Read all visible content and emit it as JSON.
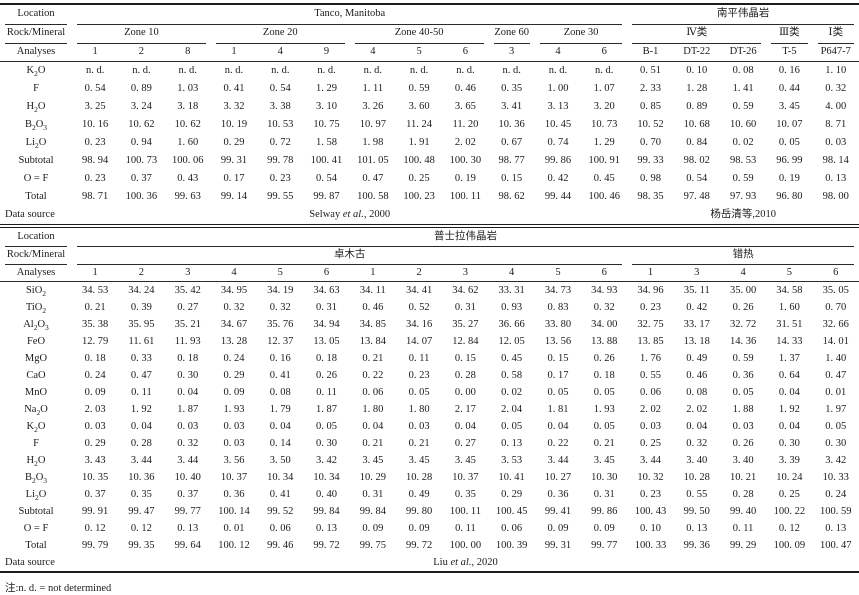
{
  "footnote": "注:n. d. = not determined",
  "tables": [
    {
      "location_label": "Location",
      "rock_label": "Rock/Mineral",
      "analyses_label": "Analyses",
      "data_source_label": "Data source",
      "locations": [
        {
          "label": "Tanco, Manitoba",
          "span": 12
        },
        {
          "label": "南平伟晶岩",
          "span": 5
        }
      ],
      "groups": [
        {
          "label": "Zone 10",
          "span": 3
        },
        {
          "label": "Zone 20",
          "span": 3
        },
        {
          "label": "Zone 40-50",
          "span": 3
        },
        {
          "label": "Zone 60",
          "span": 1
        },
        {
          "label": "Zone 30",
          "span": 2
        },
        {
          "label": "Ⅳ类",
          "span": 3
        },
        {
          "label": "Ⅲ类",
          "span": 1
        },
        {
          "label": "Ⅰ类",
          "span": 1
        }
      ],
      "analyses": [
        "1",
        "2",
        "8",
        "1",
        "4",
        "9",
        "4",
        "5",
        "6",
        "3",
        "4",
        "6",
        "B-1",
        "DT-22",
        "DT-26",
        "T-5",
        "P647-7"
      ],
      "rows": [
        {
          "label": "K2O",
          "values": [
            "n. d.",
            "n. d.",
            "n. d.",
            "n. d.",
            "n. d.",
            "n. d.",
            "n. d.",
            "n. d.",
            "n. d.",
            "n. d.",
            "n. d.",
            "n. d.",
            "0. 51",
            "0. 10",
            "0. 08",
            "0. 16",
            "1. 10"
          ]
        },
        {
          "label": "F",
          "values": [
            "0. 54",
            "0. 89",
            "1. 03",
            "0. 41",
            "0. 54",
            "1. 29",
            "1. 11",
            "0. 59",
            "0. 46",
            "0. 35",
            "1. 00",
            "1. 07",
            "2. 33",
            "1. 28",
            "1. 41",
            "0. 44",
            "0. 32"
          ]
        },
        {
          "label": "H2O",
          "values": [
            "3. 25",
            "3. 24",
            "3. 18",
            "3. 32",
            "3. 38",
            "3. 10",
            "3. 26",
            "3. 60",
            "3. 65",
            "3. 41",
            "3. 13",
            "3. 20",
            "0. 85",
            "0. 89",
            "0. 59",
            "3. 45",
            "4. 00"
          ]
        },
        {
          "label": "B2O3",
          "values": [
            "10. 16",
            "10. 62",
            "10. 62",
            "10. 19",
            "10. 53",
            "10. 75",
            "10. 97",
            "11. 24",
            "11. 20",
            "10. 36",
            "10. 45",
            "10. 73",
            "10. 52",
            "10. 68",
            "10. 60",
            "10. 07",
            "8. 71"
          ]
        },
        {
          "label": "Li2O",
          "values": [
            "0. 23",
            "0. 94",
            "1. 60",
            "0. 29",
            "0. 72",
            "1. 58",
            "1. 98",
            "1. 91",
            "2. 02",
            "0. 67",
            "0. 74",
            "1. 29",
            "0. 70",
            "0. 84",
            "0. 02",
            "0. 05",
            "0. 03"
          ]
        },
        {
          "label": "Subtotal",
          "values": [
            "98. 94",
            "100. 73",
            "100. 06",
            "99. 31",
            "99. 78",
            "100. 41",
            "101. 05",
            "100. 48",
            "100. 30",
            "98. 77",
            "99. 86",
            "100. 91",
            "99. 33",
            "98. 02",
            "98. 53",
            "96. 99",
            "98. 14"
          ]
        },
        {
          "label": "O = F",
          "values": [
            "0. 23",
            "0. 37",
            "0. 43",
            "0. 17",
            "0. 23",
            "0. 54",
            "0. 47",
            "0. 25",
            "0. 19",
            "0. 15",
            "0. 42",
            "0. 45",
            "0. 98",
            "0. 54",
            "0. 59",
            "0. 19",
            "0. 13"
          ]
        },
        {
          "label": "Total",
          "values": [
            "98. 71",
            "100. 36",
            "99. 63",
            "99. 14",
            "99. 55",
            "99. 87",
            "100. 58",
            "100. 23",
            "100. 11",
            "98. 62",
            "99. 44",
            "100. 46",
            "98. 35",
            "97. 48",
            "97. 93",
            "96. 80",
            "98. 00"
          ]
        }
      ],
      "data_sources": [
        {
          "text": "Selway et al., 2000",
          "span": 12
        },
        {
          "text": "杨岳清等,2010",
          "span": 5
        }
      ]
    },
    {
      "location_label": "Location",
      "rock_label": "Rock/Mineral",
      "analyses_label": "Analyses",
      "data_source_label": "Data source",
      "locations": [
        {
          "label": "普士拉伟晶岩",
          "span": 17
        }
      ],
      "groups": [
        {
          "label": "卓木古",
          "span": 12
        },
        {
          "label": "错热",
          "span": 5
        }
      ],
      "analyses": [
        "1",
        "2",
        "3",
        "4",
        "5",
        "6",
        "1",
        "2",
        "3",
        "4",
        "5",
        "6",
        "1",
        "3",
        "4",
        "5",
        "6"
      ],
      "rows": [
        {
          "label": "SiO2",
          "values": [
            "34. 53",
            "34. 24",
            "35. 42",
            "34. 95",
            "34. 19",
            "34. 63",
            "34. 11",
            "34. 41",
            "34. 62",
            "33. 31",
            "34. 73",
            "34. 93",
            "34. 96",
            "35. 11",
            "35. 00",
            "34. 58",
            "35. 05"
          ]
        },
        {
          "label": "TiO2",
          "values": [
            "0. 21",
            "0. 39",
            "0. 27",
            "0. 32",
            "0. 32",
            "0. 31",
            "0. 46",
            "0. 52",
            "0. 31",
            "0. 93",
            "0. 83",
            "0. 32",
            "0. 23",
            "0. 42",
            "0. 26",
            "1. 60",
            "0. 70"
          ]
        },
        {
          "label": "Al2O3",
          "values": [
            "35. 38",
            "35. 95",
            "35. 21",
            "34. 67",
            "35. 76",
            "34. 94",
            "34. 85",
            "34. 16",
            "35. 27",
            "36. 66",
            "33. 80",
            "34. 00",
            "32. 75",
            "33. 17",
            "32. 72",
            "31. 51",
            "32. 66"
          ]
        },
        {
          "label": "FeO",
          "values": [
            "12. 79",
            "11. 61",
            "11. 93",
            "13. 28",
            "12. 37",
            "13. 05",
            "13. 84",
            "14. 07",
            "12. 84",
            "12. 05",
            "13. 56",
            "13. 88",
            "13. 85",
            "13. 18",
            "14. 36",
            "14. 33",
            "14. 01"
          ]
        },
        {
          "label": "MgO",
          "values": [
            "0. 18",
            "0. 33",
            "0. 18",
            "0. 24",
            "0. 16",
            "0. 18",
            "0. 21",
            "0. 11",
            "0. 15",
            "0. 45",
            "0. 15",
            "0. 26",
            "1. 76",
            "0. 49",
            "0. 59",
            "1. 37",
            "1. 40"
          ]
        },
        {
          "label": "CaO",
          "values": [
            "0. 24",
            "0. 47",
            "0. 30",
            "0. 29",
            "0. 41",
            "0. 26",
            "0. 22",
            "0. 23",
            "0. 28",
            "0. 58",
            "0. 17",
            "0. 18",
            "0. 55",
            "0. 46",
            "0. 36",
            "0. 64",
            "0. 47"
          ]
        },
        {
          "label": "MnO",
          "values": [
            "0. 09",
            "0. 11",
            "0. 04",
            "0. 09",
            "0. 08",
            "0. 11",
            "0. 06",
            "0. 05",
            "0. 00",
            "0. 02",
            "0. 05",
            "0. 05",
            "0. 06",
            "0. 08",
            "0. 05",
            "0. 04",
            "0. 01"
          ]
        },
        {
          "label": "Na2O",
          "values": [
            "2. 03",
            "1. 92",
            "1. 87",
            "1. 93",
            "1. 79",
            "1. 87",
            "1. 80",
            "1. 80",
            "2. 17",
            "2. 04",
            "1. 81",
            "1. 93",
            "2. 02",
            "2. 02",
            "1. 88",
            "1. 92",
            "1. 97"
          ]
        },
        {
          "label": "K2O",
          "values": [
            "0. 03",
            "0. 04",
            "0. 03",
            "0. 03",
            "0. 04",
            "0. 05",
            "0. 04",
            "0. 03",
            "0. 04",
            "0. 05",
            "0. 04",
            "0. 05",
            "0. 03",
            "0. 04",
            "0. 03",
            "0. 04",
            "0. 05"
          ]
        },
        {
          "label": "F",
          "values": [
            "0. 29",
            "0. 28",
            "0. 32",
            "0. 03",
            "0. 14",
            "0. 30",
            "0. 21",
            "0. 21",
            "0. 27",
            "0. 13",
            "0. 22",
            "0. 21",
            "0. 25",
            "0. 32",
            "0. 26",
            "0. 30",
            "0. 30"
          ]
        },
        {
          "label": "H2O",
          "values": [
            "3. 43",
            "3. 44",
            "3. 44",
            "3. 56",
            "3. 50",
            "3. 42",
            "3. 45",
            "3. 45",
            "3. 45",
            "3. 53",
            "3. 44",
            "3. 45",
            "3. 44",
            "3. 40",
            "3. 40",
            "3. 39",
            "3. 42"
          ]
        },
        {
          "label": "B2O3",
          "values": [
            "10. 35",
            "10. 36",
            "10. 40",
            "10. 37",
            "10. 34",
            "10. 34",
            "10. 29",
            "10. 28",
            "10. 37",
            "10. 41",
            "10. 27",
            "10. 30",
            "10. 32",
            "10. 28",
            "10. 21",
            "10. 24",
            "10. 33"
          ]
        },
        {
          "label": "Li2O",
          "values": [
            "0. 37",
            "0. 35",
            "0. 37",
            "0. 36",
            "0. 41",
            "0. 40",
            "0. 31",
            "0. 49",
            "0. 35",
            "0. 29",
            "0. 36",
            "0. 31",
            "0. 23",
            "0. 55",
            "0. 28",
            "0. 25",
            "0. 24"
          ]
        },
        {
          "label": "Subtotal",
          "values": [
            "99. 91",
            "99. 47",
            "99. 77",
            "100. 14",
            "99. 52",
            "99. 84",
            "99. 84",
            "99. 80",
            "100. 11",
            "100. 45",
            "99. 41",
            "99. 86",
            "100. 43",
            "99. 50",
            "99. 40",
            "100. 22",
            "100. 59"
          ]
        },
        {
          "label": "O = F",
          "values": [
            "0. 12",
            "0. 12",
            "0. 13",
            "0. 01",
            "0. 06",
            "0. 13",
            "0. 09",
            "0. 09",
            "0. 11",
            "0. 06",
            "0. 09",
            "0. 09",
            "0. 10",
            "0. 13",
            "0. 11",
            "0. 12",
            "0. 13"
          ]
        },
        {
          "label": "Total",
          "values": [
            "99. 79",
            "99. 35",
            "99. 64",
            "100. 12",
            "99. 46",
            "99. 72",
            "99. 75",
            "99. 72",
            "100. 00",
            "100. 39",
            "99. 31",
            "99. 77",
            "100. 33",
            "99. 36",
            "99. 29",
            "100. 09",
            "100. 47"
          ]
        }
      ],
      "data_sources": [
        {
          "text": "Liu et al., 2020",
          "span": 17
        }
      ]
    }
  ]
}
